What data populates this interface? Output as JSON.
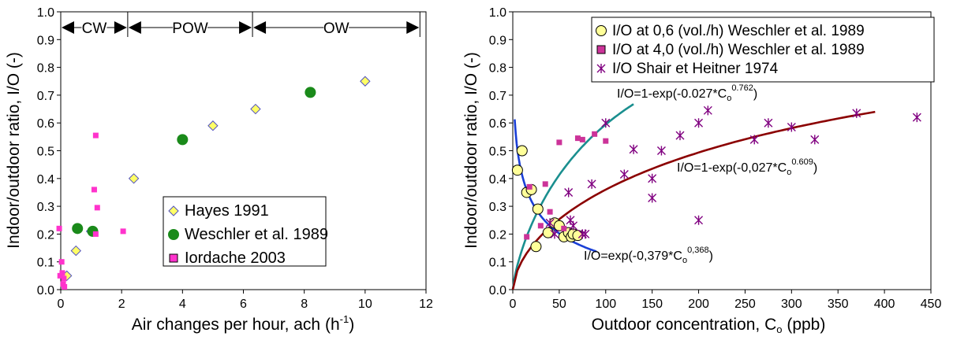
{
  "chart_data": [
    {
      "type": "scatter",
      "xlabel": "Air changes per hour, ach (h",
      "xlabel_sup": "-1",
      "xlabel_end": ")",
      "ylabel": "Indoor/outdoor ratio, I/O (-)",
      "xlim": [
        0,
        12
      ],
      "ylim": [
        0,
        1.0
      ],
      "x_ticks": [
        "0",
        "2",
        "4",
        "6",
        "8",
        "10",
        "12"
      ],
      "y_ticks": [
        "0.0",
        "0.1",
        "0.2",
        "0.3",
        "0.4",
        "0.5",
        "0.6",
        "0.7",
        "0.8",
        "0.9",
        "1.0"
      ],
      "grid": false,
      "legend_position": "bottom-right",
      "regions": [
        {
          "label": "CW",
          "x_start": 0,
          "x_end": 2.2
        },
        {
          "label": "POW",
          "x_start": 2.2,
          "x_end": 6.3
        },
        {
          "label": "OW",
          "x_start": 6.3,
          "x_end": 11.8
        }
      ],
      "series": [
        {
          "name": "Hayes 1991",
          "marker": "diamond",
          "color": "#ffff66",
          "stroke": "#5050c0",
          "x": [
            0.2,
            0.5,
            1.0,
            2.4,
            5.0,
            6.4,
            10.0
          ],
          "y": [
            0.05,
            0.14,
            0.21,
            0.4,
            0.59,
            0.65,
            0.75
          ]
        },
        {
          "name": "Weschler et al. 1989",
          "marker": "circle",
          "color": "#1a8a1a",
          "x": [
            0.55,
            1.05,
            4.0,
            8.2
          ],
          "y": [
            0.22,
            0.21,
            0.54,
            0.71
          ]
        },
        {
          "name": "Iordache 2003",
          "marker": "square",
          "color": "#ff33cc",
          "x": [
            -0.05,
            0.03,
            0.05,
            0.1,
            0.08,
            0.12,
            -0.02,
            1.15,
            1.1,
            1.2,
            1.15,
            2.05
          ],
          "y": [
            0.22,
            0.1,
            0.06,
            0.04,
            0.02,
            0.01,
            0.05,
            0.555,
            0.36,
            0.295,
            0.2,
            0.21
          ]
        }
      ]
    },
    {
      "type": "scatter",
      "xlabel": "Outdoor concentration, C",
      "xlabel_sub": "o",
      "xlabel_end": " (ppb)",
      "ylabel": "Indoor/outdoor ratio, I/O (-)",
      "xlim": [
        0,
        450
      ],
      "ylim": [
        0,
        1.0
      ],
      "x_ticks": [
        "0",
        "50",
        "100",
        "150",
        "200",
        "250",
        "300",
        "350",
        "400",
        "450"
      ],
      "y_ticks": [
        "0.0",
        "0.1",
        "0.2",
        "0.3",
        "0.4",
        "0.5",
        "0.6",
        "0.7",
        "0.8",
        "0.9",
        "1.0"
      ],
      "grid": false,
      "legend_position": "top-right",
      "series": [
        {
          "name": "I/O at 0,6 (vol./h) Weschler et al. 1989",
          "marker": "circle",
          "color": "#ffff99",
          "x": [
            5,
            10,
            15,
            20,
            25,
            27,
            38,
            45,
            50,
            55,
            60,
            63,
            65,
            70
          ],
          "y": [
            0.43,
            0.5,
            0.35,
            0.36,
            0.155,
            0.29,
            0.205,
            0.24,
            0.23,
            0.19,
            0.205,
            0.19,
            0.2,
            0.195
          ]
        },
        {
          "name": "I/O at 4,0 (vol./h) Weschler et al. 1989",
          "marker": "square",
          "color": "#cc3399",
          "x": [
            15,
            18,
            30,
            35,
            40,
            50,
            55,
            70,
            75,
            88,
            100
          ],
          "y": [
            0.19,
            0.37,
            0.23,
            0.38,
            0.28,
            0.53,
            0.22,
            0.545,
            0.54,
            0.56,
            0.535
          ]
        },
        {
          "name": "I/O Shair et Heitner 1974",
          "marker": "asterisk",
          "color": "#800080",
          "x": [
            40,
            45,
            60,
            62,
            65,
            75,
            78,
            85,
            100,
            120,
            130,
            150,
            150,
            160,
            180,
            200,
            200,
            210,
            260,
            275,
            300,
            325,
            370,
            435
          ],
          "y": [
            0.24,
            0.2,
            0.35,
            0.25,
            0.23,
            0.2,
            0.2,
            0.38,
            0.6,
            0.415,
            0.505,
            0.4,
            0.33,
            0.5,
            0.555,
            0.6,
            0.25,
            0.645,
            0.54,
            0.6,
            0.585,
            0.54,
            0.635,
            0.62
          ]
        }
      ],
      "fits": [
        {
          "label": "I/O=1-exp(-0.027*C",
          "label_sub": "o",
          "label_sup": "0.762",
          "label_end": ")",
          "color": "#1a8f8f",
          "a": 0.027,
          "b": 0.762,
          "form": "one_minus_exp",
          "x_range": [
            0,
            130
          ]
        },
        {
          "label": "I/O=1-exp(-0,027*C",
          "label_sub": "o",
          "label_sup": "0.609",
          "label_end": ")",
          "color": "#8b0000",
          "a": 0.027,
          "b": 0.609,
          "form": "one_minus_exp",
          "x_range": [
            0,
            390
          ]
        },
        {
          "label": "I/O=exp(-0,379*C",
          "label_sub": "o",
          "label_sup": "0,368",
          "label_end": ")",
          "color": "#1a3fd6",
          "a": 0.379,
          "b": 0.368,
          "form": "exp",
          "x_range": [
            2,
            90
          ]
        }
      ]
    }
  ]
}
